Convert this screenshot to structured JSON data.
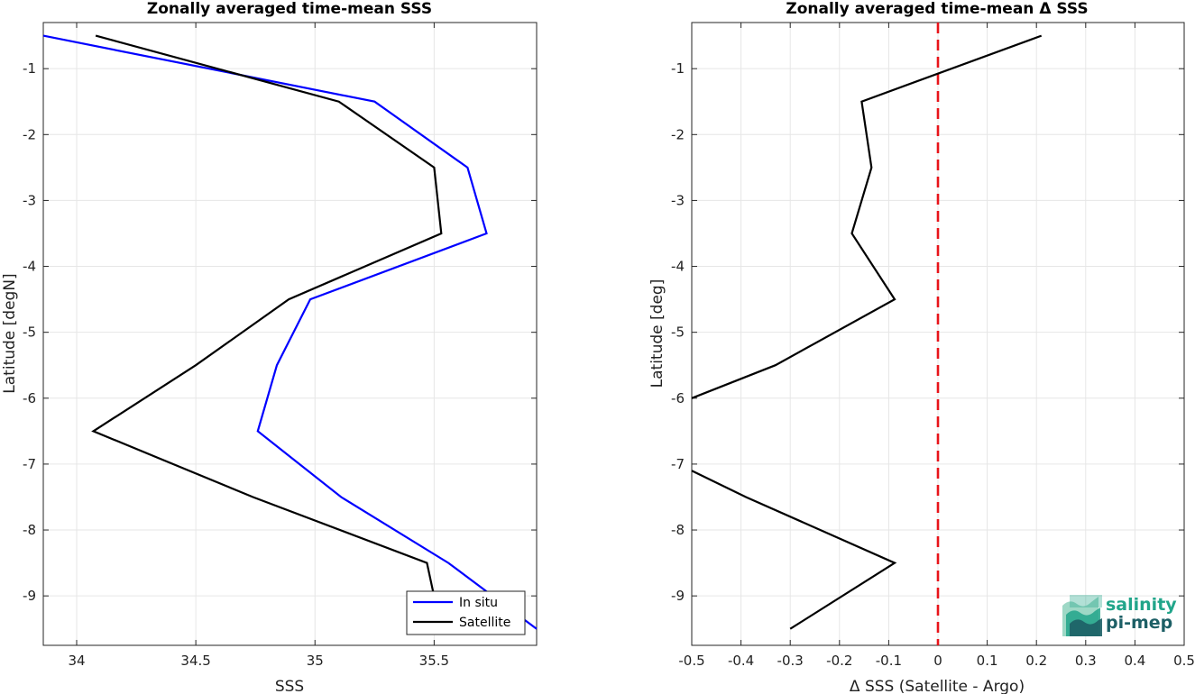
{
  "chart_data": [
    {
      "type": "line",
      "title": "Zonally averaged time-mean SSS",
      "xlabel": "SSS",
      "ylabel": "Latitude [degN]",
      "xlim": [
        33.86,
        35.93
      ],
      "ylim": [
        -9.75,
        -0.3
      ],
      "xticks": [
        34,
        34.5,
        35,
        35.5
      ],
      "xtick_labels": [
        "34",
        "34.5",
        "35",
        "35.5"
      ],
      "yticks": [
        -1,
        -2,
        -3,
        -4,
        -5,
        -6,
        -7,
        -8,
        -9
      ],
      "ytick_labels": [
        "-1",
        "-2",
        "-3",
        "-4",
        "-5",
        "-6",
        "-7",
        "-8",
        "-9"
      ],
      "grid": true,
      "legend": "bottom-right",
      "series": [
        {
          "name": "In situ",
          "color": "#0000ff",
          "x": [
            33.86,
            35.25,
            35.64,
            35.72,
            34.98,
            34.84,
            34.76,
            35.11,
            35.56,
            35.93
          ],
          "y": [
            -0.5,
            -1.5,
            -2.5,
            -3.5,
            -4.5,
            -5.5,
            -6.5,
            -7.5,
            -8.5,
            -9.5
          ]
        },
        {
          "name": "Satellite",
          "color": "#000000",
          "x": [
            34.08,
            35.1,
            35.5,
            35.53,
            34.89,
            34.5,
            34.07,
            34.74,
            35.47,
            35.52
          ],
          "y": [
            -0.5,
            -1.5,
            -2.5,
            -3.5,
            -4.5,
            -5.5,
            -6.5,
            -7.5,
            -8.5,
            -9.35
          ]
        }
      ]
    },
    {
      "type": "line",
      "title": "Zonally averaged time-mean Δ SSS",
      "xlabel": "Δ SSS (Satellite - Argo)",
      "ylabel": "Latitude [deg]",
      "xlim": [
        -0.5,
        0.5
      ],
      "ylim": [
        -9.75,
        -0.3
      ],
      "xticks": [
        -0.5,
        -0.4,
        -0.3,
        -0.2,
        -0.1,
        0,
        0.1,
        0.2,
        0.3,
        0.4,
        0.5
      ],
      "xtick_labels": [
        "-0.5",
        "-0.4",
        "-0.3",
        "-0.2",
        "-0.1",
        "0",
        "0.1",
        "0.2",
        "0.3",
        "0.4",
        "0.5"
      ],
      "yticks": [
        -1,
        -2,
        -3,
        -4,
        -5,
        -6,
        -7,
        -8,
        -9
      ],
      "ytick_labels": [
        "-1",
        "-2",
        "-3",
        "-4",
        "-5",
        "-6",
        "-7",
        "-8",
        "-9"
      ],
      "grid": true,
      "reference_line": {
        "x": 0,
        "color": "#e8141a",
        "style": "dashed"
      },
      "series": [
        {
          "color": "#000000",
          "segments": [
            {
              "x": [
                0.21,
                -0.155,
                -0.135,
                -0.175,
                -0.088,
                -0.33,
                -0.5
              ],
              "y": [
                -0.5,
                -1.5,
                -2.5,
                -3.5,
                -4.5,
                -5.5,
                -6.0
              ]
            },
            {
              "x": [
                -0.5,
                -0.39,
                -0.088,
                -0.3
              ],
              "y": [
                -7.1,
                -7.5,
                -8.5,
                -9.5
              ]
            }
          ]
        }
      ]
    }
  ],
  "logo": {
    "line1": "salinity",
    "line2": "pi-mep",
    "colors": [
      "#21a58a",
      "#1d5f66",
      "#9ed8c6"
    ]
  }
}
